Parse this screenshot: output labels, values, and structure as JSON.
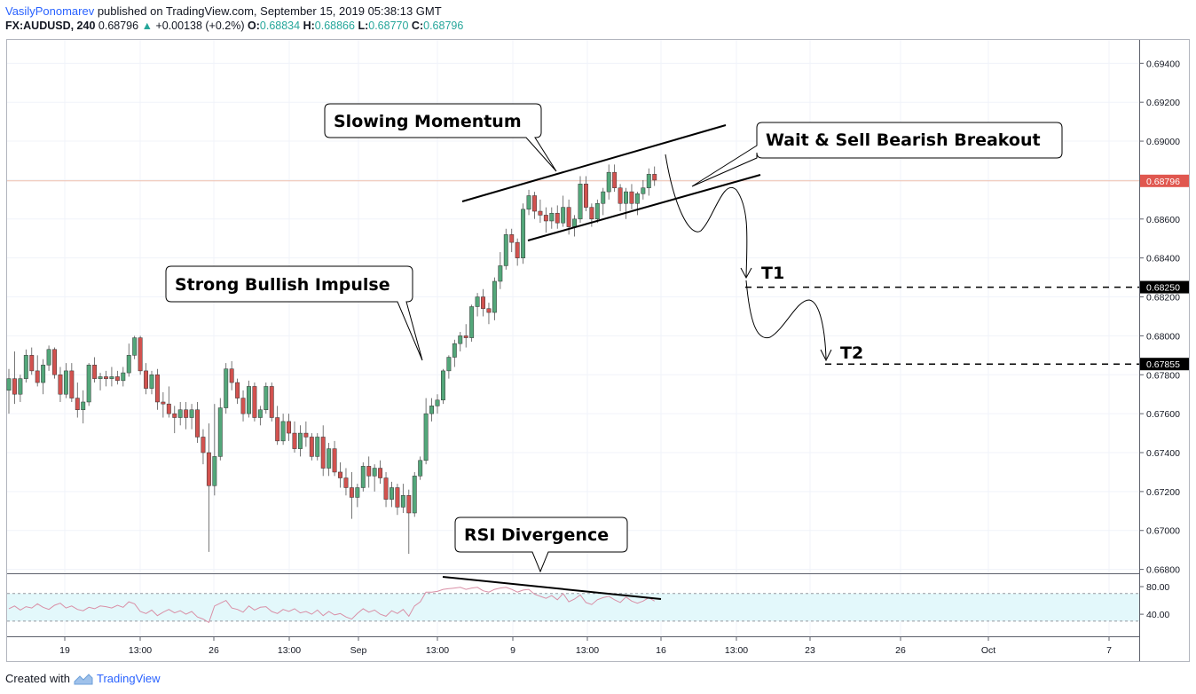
{
  "header": {
    "author": "VasilyPonomarev",
    "published": "published on TradingView.com, September 15, 2019 05:38:13 GMT",
    "symbol": "FX:AUDUSD, 240",
    "last": "0.68796",
    "change": "+0.00138 (+0.2%)",
    "o_label": "O:",
    "o_value": "0.68834",
    "h_label": "H:",
    "h_value": "0.68866",
    "l_label": "L:",
    "l_value": "0.68770",
    "c_label": "C:",
    "c_value": "0.68796"
  },
  "footer": {
    "created_with": "Created with",
    "brand": "TradingView"
  },
  "colors": {
    "bull": "#53a77a",
    "bear": "#d2524f",
    "last_price_label": "#e0574f",
    "rsi_line": "#d98fa6",
    "rsi_band": "#e3f8fb",
    "grid": "#f0f3fa"
  },
  "chart_data": {
    "type": "candlestick",
    "symbol": "FX:AUDUSD",
    "interval": "240",
    "price_axis": {
      "ticks": [
        "0.69400",
        "0.69200",
        "0.69000",
        "0.68800",
        "0.68600",
        "0.68400",
        "0.68200",
        "0.68000",
        "0.67800",
        "0.67600",
        "0.67400",
        "0.67200",
        "0.67000",
        "0.66800"
      ],
      "range": [
        0.6678,
        0.6952
      ],
      "last_price_label": "0.68796",
      "t1_label": "0.68250",
      "t2_label": "0.67855"
    },
    "rsi_axis": {
      "ticks": [
        "80.00",
        "40.00"
      ],
      "range": [
        8,
        98
      ],
      "band": [
        30,
        70
      ]
    },
    "time_axis": [
      "19",
      "13:00",
      "26",
      "13:00",
      "Sep",
      "13:00",
      "9",
      "13:00",
      "16",
      "13:00",
      "23",
      "26",
      "Oct",
      "7"
    ],
    "candles": [
      [
        0.6772,
        0.6783,
        0.676,
        0.6778
      ],
      [
        0.6778,
        0.6792,
        0.6765,
        0.677
      ],
      [
        0.677,
        0.678,
        0.6766,
        0.6778
      ],
      [
        0.6778,
        0.6793,
        0.6776,
        0.679
      ],
      [
        0.679,
        0.6794,
        0.678,
        0.6782
      ],
      [
        0.6782,
        0.679,
        0.6774,
        0.6776
      ],
      [
        0.6776,
        0.6788,
        0.677,
        0.6785
      ],
      [
        0.6785,
        0.6795,
        0.6782,
        0.6793
      ],
      [
        0.6793,
        0.6794,
        0.6778,
        0.678
      ],
      [
        0.678,
        0.6784,
        0.6766,
        0.677
      ],
      [
        0.677,
        0.6786,
        0.6768,
        0.6782
      ],
      [
        0.6782,
        0.6786,
        0.6766,
        0.6768
      ],
      [
        0.6768,
        0.6776,
        0.6758,
        0.6762
      ],
      [
        0.6762,
        0.6772,
        0.6755,
        0.6766
      ],
      [
        0.6766,
        0.6786,
        0.6764,
        0.6785
      ],
      [
        0.6785,
        0.6789,
        0.6776,
        0.6778
      ],
      [
        0.6778,
        0.6781,
        0.6772,
        0.6779
      ],
      [
        0.6779,
        0.6782,
        0.6774,
        0.6778
      ],
      [
        0.6778,
        0.6784,
        0.6774,
        0.6779
      ],
      [
        0.6779,
        0.6782,
        0.6775,
        0.6777
      ],
      [
        0.6777,
        0.6784,
        0.6774,
        0.6781
      ],
      [
        0.6781,
        0.6796,
        0.6779,
        0.679
      ],
      [
        0.679,
        0.68,
        0.6788,
        0.6799
      ],
      [
        0.6799,
        0.68,
        0.678,
        0.6782
      ],
      [
        0.6782,
        0.6786,
        0.677,
        0.6773
      ],
      [
        0.6773,
        0.6782,
        0.677,
        0.678
      ],
      [
        0.678,
        0.6783,
        0.6762,
        0.6766
      ],
      [
        0.6766,
        0.6771,
        0.6758,
        0.6765
      ],
      [
        0.6765,
        0.6774,
        0.6758,
        0.676
      ],
      [
        0.676,
        0.6764,
        0.675,
        0.6758
      ],
      [
        0.6758,
        0.6766,
        0.6754,
        0.6762
      ],
      [
        0.6762,
        0.6766,
        0.6752,
        0.6758
      ],
      [
        0.6758,
        0.6765,
        0.6752,
        0.6762
      ],
      [
        0.6762,
        0.6766,
        0.6745,
        0.6748
      ],
      [
        0.6748,
        0.6752,
        0.6734,
        0.674
      ],
      [
        0.674,
        0.6755,
        0.6689,
        0.6723
      ],
      [
        0.6723,
        0.6765,
        0.6718,
        0.6738
      ],
      [
        0.6738,
        0.6768,
        0.6736,
        0.6763
      ],
      [
        0.6763,
        0.6786,
        0.676,
        0.6783
      ],
      [
        0.6783,
        0.6787,
        0.6772,
        0.6776
      ],
      [
        0.6776,
        0.6778,
        0.6765,
        0.6768
      ],
      [
        0.6768,
        0.6772,
        0.6756,
        0.676
      ],
      [
        0.676,
        0.6777,
        0.6758,
        0.6774
      ],
      [
        0.6774,
        0.6776,
        0.6756,
        0.6758
      ],
      [
        0.6758,
        0.6764,
        0.6754,
        0.6762
      ],
      [
        0.6762,
        0.6776,
        0.676,
        0.6774
      ],
      [
        0.6774,
        0.6776,
        0.6756,
        0.6758
      ],
      [
        0.6758,
        0.6764,
        0.6744,
        0.6746
      ],
      [
        0.6746,
        0.676,
        0.6744,
        0.6756
      ],
      [
        0.6756,
        0.676,
        0.6746,
        0.675
      ],
      [
        0.675,
        0.6756,
        0.674,
        0.6742
      ],
      [
        0.6742,
        0.6754,
        0.6738,
        0.675
      ],
      [
        0.675,
        0.6756,
        0.6743,
        0.6748
      ],
      [
        0.6748,
        0.675,
        0.6736,
        0.6738
      ],
      [
        0.6738,
        0.675,
        0.6736,
        0.6748
      ],
      [
        0.6748,
        0.6754,
        0.6728,
        0.6732
      ],
      [
        0.6732,
        0.6745,
        0.6728,
        0.6742
      ],
      [
        0.6742,
        0.6746,
        0.6728,
        0.673
      ],
      [
        0.673,
        0.6735,
        0.6722,
        0.6727
      ],
      [
        0.6727,
        0.6732,
        0.6718,
        0.6722
      ],
      [
        0.6722,
        0.673,
        0.6706,
        0.6717
      ],
      [
        0.6717,
        0.6724,
        0.6712,
        0.6722
      ],
      [
        0.6722,
        0.6735,
        0.672,
        0.6733
      ],
      [
        0.6733,
        0.6738,
        0.6722,
        0.6728
      ],
      [
        0.6728,
        0.6734,
        0.672,
        0.6732
      ],
      [
        0.6732,
        0.6736,
        0.6724,
        0.6727
      ],
      [
        0.6727,
        0.673,
        0.6712,
        0.6716
      ],
      [
        0.6716,
        0.6725,
        0.6712,
        0.6722
      ],
      [
        0.6722,
        0.6724,
        0.6708,
        0.6712
      ],
      [
        0.6712,
        0.6724,
        0.6709,
        0.6718
      ],
      [
        0.6718,
        0.6721,
        0.6688,
        0.6709
      ],
      [
        0.6709,
        0.673,
        0.6707,
        0.6728
      ],
      [
        0.6728,
        0.6738,
        0.6726,
        0.6736
      ],
      [
        0.6736,
        0.6768,
        0.6734,
        0.676
      ],
      [
        0.676,
        0.6768,
        0.6756,
        0.6764
      ],
      [
        0.6764,
        0.677,
        0.676,
        0.6767
      ],
      [
        0.6767,
        0.6783,
        0.6765,
        0.6782
      ],
      [
        0.6782,
        0.679,
        0.6778,
        0.6789
      ],
      [
        0.6789,
        0.6798,
        0.6784,
        0.6796
      ],
      [
        0.6796,
        0.6802,
        0.6792,
        0.68
      ],
      [
        0.68,
        0.6806,
        0.6794,
        0.6799
      ],
      [
        0.6799,
        0.6816,
        0.6797,
        0.6815
      ],
      [
        0.6815,
        0.6822,
        0.681,
        0.682
      ],
      [
        0.682,
        0.6824,
        0.681,
        0.6814
      ],
      [
        0.6814,
        0.6817,
        0.6806,
        0.6812
      ],
      [
        0.6812,
        0.683,
        0.6808,
        0.6828
      ],
      [
        0.6828,
        0.6843,
        0.6824,
        0.6836
      ],
      [
        0.6836,
        0.6855,
        0.6834,
        0.6852
      ],
      [
        0.6852,
        0.6855,
        0.6843,
        0.6848
      ],
      [
        0.6848,
        0.685,
        0.6836,
        0.684
      ],
      [
        0.684,
        0.6868,
        0.6837,
        0.6865
      ],
      [
        0.6865,
        0.6875,
        0.6862,
        0.6872
      ],
      [
        0.6872,
        0.6874,
        0.686,
        0.6864
      ],
      [
        0.6864,
        0.687,
        0.6858,
        0.6862
      ],
      [
        0.6862,
        0.6866,
        0.6853,
        0.6859
      ],
      [
        0.6859,
        0.6866,
        0.6855,
        0.6863
      ],
      [
        0.6863,
        0.6867,
        0.6855,
        0.6858
      ],
      [
        0.6858,
        0.6872,
        0.6856,
        0.6866
      ],
      [
        0.6866,
        0.687,
        0.6852,
        0.6856
      ],
      [
        0.6856,
        0.6862,
        0.6851,
        0.686
      ],
      [
        0.686,
        0.6882,
        0.6858,
        0.6878
      ],
      [
        0.6878,
        0.6882,
        0.6864,
        0.6866
      ],
      [
        0.6866,
        0.6868,
        0.6856,
        0.686
      ],
      [
        0.686,
        0.687,
        0.6858,
        0.6868
      ],
      [
        0.6868,
        0.6876,
        0.6862,
        0.6874
      ],
      [
        0.6874,
        0.6888,
        0.687,
        0.6884
      ],
      [
        0.6884,
        0.6888,
        0.6874,
        0.6876
      ],
      [
        0.6876,
        0.6878,
        0.6864,
        0.6868
      ],
      [
        0.6868,
        0.6876,
        0.686,
        0.6874
      ],
      [
        0.6874,
        0.6878,
        0.6865,
        0.6868
      ],
      [
        0.6868,
        0.6874,
        0.6862,
        0.6873
      ],
      [
        0.6873,
        0.688,
        0.687,
        0.6876
      ],
      [
        0.6876,
        0.6886,
        0.6872,
        0.6883
      ],
      [
        0.6883,
        0.6887,
        0.6877,
        0.688
      ]
    ],
    "rsi": [
      48,
      52,
      46,
      51,
      49,
      55,
      50,
      47,
      53,
      56,
      49,
      52,
      47,
      45,
      50,
      48,
      52,
      51,
      49,
      53,
      50,
      58,
      55,
      44,
      41,
      46,
      38,
      43,
      47,
      42,
      45,
      40,
      44,
      36,
      33,
      28,
      52,
      56,
      60,
      49,
      47,
      43,
      52,
      46,
      50,
      51,
      44,
      41,
      47,
      44,
      48,
      42,
      44,
      40,
      46,
      38,
      44,
      39,
      41,
      36,
      33,
      41,
      48,
      43,
      46,
      40,
      37,
      45,
      41,
      47,
      37,
      52,
      58,
      72,
      72,
      73,
      76,
      77,
      78,
      79,
      76,
      78,
      79,
      74,
      72,
      76,
      78,
      79,
      76,
      72,
      75,
      76,
      69,
      66,
      63,
      67,
      61,
      70,
      58,
      62,
      68,
      57,
      54,
      61,
      64,
      66,
      61,
      57,
      65,
      59,
      56,
      59,
      64,
      59
    ],
    "annotations": {
      "slowing_momentum": "Slowing Momentum",
      "strong_impulse": "Strong Bullish Impulse",
      "sell_breakout": "Wait & Sell Bearish Breakout",
      "rsi_divergence": "RSI Divergence",
      "t1": "T1",
      "t2": "T2"
    }
  }
}
